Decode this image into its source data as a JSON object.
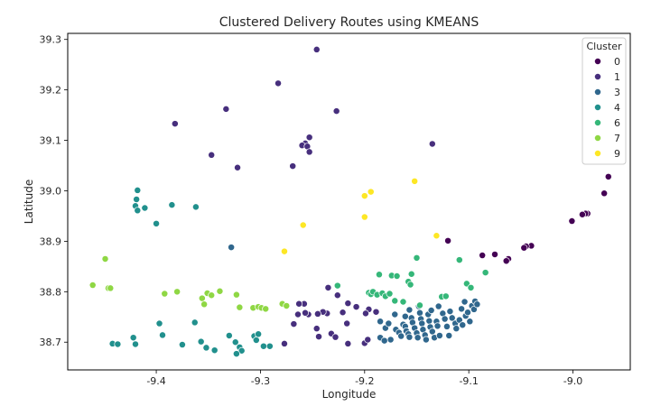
{
  "chart_data": {
    "type": "scatter",
    "title": "Clustered Delivery Routes using KMEANS",
    "xlabel": "Longitude",
    "ylabel": "Latitude",
    "xlim": [
      -9.485,
      -8.945
    ],
    "ylim": [
      38.645,
      39.312
    ],
    "xticks": [
      "-9.4",
      "-9.3",
      "-9.2",
      "-9.1",
      "-9.0"
    ],
    "xtick_values": [
      -9.4,
      -9.3,
      -9.2,
      -9.1,
      -9.0
    ],
    "yticks": [
      "38.7",
      "38.8",
      "38.9",
      "39.0",
      "39.1",
      "39.2",
      "39.3"
    ],
    "ytick_values": [
      38.7,
      38.8,
      38.9,
      39.0,
      39.1,
      39.2,
      39.3
    ],
    "grid": false,
    "legend": {
      "title": "Cluster",
      "placement": "top-right",
      "entries": [
        {
          "label": "0",
          "color": "#440154"
        },
        {
          "label": "1",
          "color": "#472f7d"
        },
        {
          "label": "3",
          "color": "#30678d"
        },
        {
          "label": "4",
          "color": "#21908d"
        },
        {
          "label": "6",
          "color": "#35b779"
        },
        {
          "label": "7",
          "color": "#8fd744"
        },
        {
          "label": "9",
          "color": "#fde725"
        }
      ]
    },
    "series": [
      {
        "name": "0",
        "color": "#440154",
        "points": [
          [
            -8.966,
            39.028
          ],
          [
            -8.97,
            38.995
          ],
          [
            -8.986,
            38.955
          ],
          [
            -8.988,
            38.955
          ],
          [
            -8.991,
            38.953
          ],
          [
            -9.001,
            38.94
          ],
          [
            -9.04,
            38.891
          ],
          [
            -9.045,
            38.89
          ],
          [
            -9.047,
            38.887
          ],
          [
            -9.062,
            38.865
          ],
          [
            -9.064,
            38.861
          ],
          [
            -9.075,
            38.874
          ],
          [
            -9.087,
            38.872
          ],
          [
            -9.12,
            38.901
          ]
        ]
      },
      {
        "name": "1",
        "color": "#472f7d",
        "points": [
          [
            -9.283,
            39.213
          ],
          [
            -9.246,
            39.28
          ],
          [
            -9.227,
            39.158
          ],
          [
            -9.382,
            39.133
          ],
          [
            -9.333,
            39.162
          ],
          [
            -9.347,
            39.071
          ],
          [
            -9.322,
            39.046
          ],
          [
            -9.269,
            39.049
          ],
          [
            -9.253,
            39.106
          ],
          [
            -9.257,
            39.094
          ],
          [
            -9.26,
            39.09
          ],
          [
            -9.255,
            39.088
          ],
          [
            -9.253,
            39.077
          ],
          [
            -9.135,
            39.093
          ],
          [
            -9.235,
            38.808
          ],
          [
            -9.226,
            38.793
          ],
          [
            -9.216,
            38.777
          ],
          [
            -9.208,
            38.77
          ],
          [
            -9.196,
            38.765
          ],
          [
            -9.189,
            38.76
          ],
          [
            -9.199,
            38.757
          ],
          [
            -9.221,
            38.759
          ],
          [
            -9.236,
            38.757
          ],
          [
            -9.24,
            38.76
          ],
          [
            -9.245,
            38.756
          ],
          [
            -9.254,
            38.755
          ],
          [
            -9.257,
            38.758
          ],
          [
            -9.258,
            38.776
          ],
          [
            -9.263,
            38.776
          ],
          [
            -9.264,
            38.755
          ],
          [
            -9.268,
            38.736
          ],
          [
            -9.246,
            38.727
          ],
          [
            -9.244,
            38.711
          ],
          [
            -9.232,
            38.717
          ],
          [
            -9.228,
            38.71
          ],
          [
            -9.217,
            38.737
          ],
          [
            -9.216,
            38.697
          ],
          [
            -9.2,
            38.698
          ],
          [
            -9.197,
            38.705
          ],
          [
            -9.277,
            38.697
          ]
        ]
      },
      {
        "name": "3",
        "color": "#30678d",
        "points": [
          [
            -9.185,
            38.741
          ],
          [
            -9.18,
            38.728
          ],
          [
            -9.185,
            38.709
          ],
          [
            -9.181,
            38.703
          ],
          [
            -9.175,
            38.705
          ],
          [
            -9.17,
            38.725
          ],
          [
            -9.167,
            38.719
          ],
          [
            -9.165,
            38.712
          ],
          [
            -9.163,
            38.735
          ],
          [
            -9.161,
            38.731
          ],
          [
            -9.16,
            38.722
          ],
          [
            -9.158,
            38.716
          ],
          [
            -9.157,
            38.71
          ],
          [
            -9.155,
            38.748
          ],
          [
            -9.154,
            38.739
          ],
          [
            -9.152,
            38.728
          ],
          [
            -9.15,
            38.718
          ],
          [
            -9.149,
            38.709
          ],
          [
            -9.147,
            38.758
          ],
          [
            -9.146,
            38.746
          ],
          [
            -9.145,
            38.737
          ],
          [
            -9.144,
            38.725
          ],
          [
            -9.142,
            38.714
          ],
          [
            -9.141,
            38.705
          ],
          [
            -9.139,
            38.755
          ],
          [
            -9.138,
            38.742
          ],
          [
            -9.137,
            38.73
          ],
          [
            -9.135,
            38.721
          ],
          [
            -9.133,
            38.709
          ],
          [
            -9.131,
            38.741
          ],
          [
            -9.13,
            38.732
          ],
          [
            -9.128,
            38.713
          ],
          [
            -9.125,
            38.757
          ],
          [
            -9.123,
            38.746
          ],
          [
            -9.121,
            38.731
          ],
          [
            -9.119,
            38.713
          ],
          [
            -9.118,
            38.761
          ],
          [
            -9.116,
            38.748
          ],
          [
            -9.113,
            38.737
          ],
          [
            -9.112,
            38.727
          ],
          [
            -9.109,
            38.744
          ],
          [
            -9.107,
            38.766
          ],
          [
            -9.106,
            38.734
          ],
          [
            -9.104,
            38.78
          ],
          [
            -9.103,
            38.752
          ],
          [
            -9.101,
            38.759
          ],
          [
            -9.099,
            38.741
          ],
          [
            -9.097,
            38.772
          ],
          [
            -9.095,
            38.765
          ],
          [
            -9.094,
            38.781
          ],
          [
            -9.092,
            38.775
          ],
          [
            -9.148,
            38.771
          ],
          [
            -9.157,
            38.764
          ],
          [
            -9.161,
            38.751
          ],
          [
            -9.171,
            38.755
          ],
          [
            -9.177,
            38.737
          ],
          [
            -9.129,
            38.771
          ],
          [
            -9.136,
            38.763
          ],
          [
            -9.328,
            38.888
          ]
        ]
      },
      {
        "name": "4",
        "color": "#21908d",
        "points": [
          [
            -9.418,
            39.001
          ],
          [
            -9.419,
            38.983
          ],
          [
            -9.42,
            38.97
          ],
          [
            -9.418,
            38.961
          ],
          [
            -9.411,
            38.966
          ],
          [
            -9.385,
            38.972
          ],
          [
            -9.362,
            38.968
          ],
          [
            -9.4,
            38.935
          ],
          [
            -9.397,
            38.737
          ],
          [
            -9.394,
            38.714
          ],
          [
            -9.363,
            38.739
          ],
          [
            -9.375,
            38.695
          ],
          [
            -9.357,
            38.701
          ],
          [
            -9.352,
            38.689
          ],
          [
            -9.344,
            38.684
          ],
          [
            -9.33,
            38.713
          ],
          [
            -9.324,
            38.7
          ],
          [
            -9.32,
            38.69
          ],
          [
            -9.318,
            38.683
          ],
          [
            -9.323,
            38.677
          ],
          [
            -9.306,
            38.712
          ],
          [
            -9.304,
            38.704
          ],
          [
            -9.302,
            38.716
          ],
          [
            -9.297,
            38.692
          ],
          [
            -9.291,
            38.692
          ],
          [
            -9.422,
            38.709
          ],
          [
            -9.42,
            38.696
          ],
          [
            -9.442,
            38.697
          ],
          [
            -9.437,
            38.696
          ]
        ]
      },
      {
        "name": "6",
        "color": "#35b779",
        "points": [
          [
            -9.226,
            38.812
          ],
          [
            -9.196,
            38.798
          ],
          [
            -9.194,
            38.795
          ],
          [
            -9.192,
            38.8
          ],
          [
            -9.188,
            38.794
          ],
          [
            -9.186,
            38.834
          ],
          [
            -9.183,
            38.797
          ],
          [
            -9.18,
            38.791
          ],
          [
            -9.176,
            38.796
          ],
          [
            -9.174,
            38.832
          ],
          [
            -9.169,
            38.831
          ],
          [
            -9.163,
            38.78
          ],
          [
            -9.158,
            38.82
          ],
          [
            -9.156,
            38.814
          ],
          [
            -9.155,
            38.835
          ],
          [
            -9.15,
            38.867
          ],
          [
            -9.126,
            38.79
          ],
          [
            -9.122,
            38.791
          ],
          [
            -9.109,
            38.863
          ],
          [
            -9.102,
            38.816
          ],
          [
            -9.098,
            38.808
          ],
          [
            -9.084,
            38.838
          ],
          [
            -9.171,
            38.782
          ],
          [
            -9.147,
            38.773
          ]
        ]
      },
      {
        "name": "7",
        "color": "#8fd744",
        "points": [
          [
            -9.461,
            38.813
          ],
          [
            -9.449,
            38.865
          ],
          [
            -9.446,
            38.807
          ],
          [
            -9.444,
            38.807
          ],
          [
            -9.392,
            38.796
          ],
          [
            -9.38,
            38.8
          ],
          [
            -9.356,
            38.787
          ],
          [
            -9.354,
            38.775
          ],
          [
            -9.351,
            38.797
          ],
          [
            -9.347,
            38.793
          ],
          [
            -9.339,
            38.801
          ],
          [
            -9.323,
            38.794
          ],
          [
            -9.32,
            38.769
          ],
          [
            -9.307,
            38.768
          ],
          [
            -9.302,
            38.77
          ],
          [
            -9.299,
            38.768
          ],
          [
            -9.295,
            38.766
          ],
          [
            -9.279,
            38.776
          ],
          [
            -9.275,
            38.772
          ]
        ]
      },
      {
        "name": "9",
        "color": "#fde725",
        "points": [
          [
            -9.152,
            39.019
          ],
          [
            -9.194,
            38.998
          ],
          [
            -9.2,
            38.99
          ],
          [
            -9.2,
            38.948
          ],
          [
            -9.259,
            38.932
          ],
          [
            -9.277,
            38.88
          ],
          [
            -9.131,
            38.911
          ]
        ]
      }
    ]
  }
}
